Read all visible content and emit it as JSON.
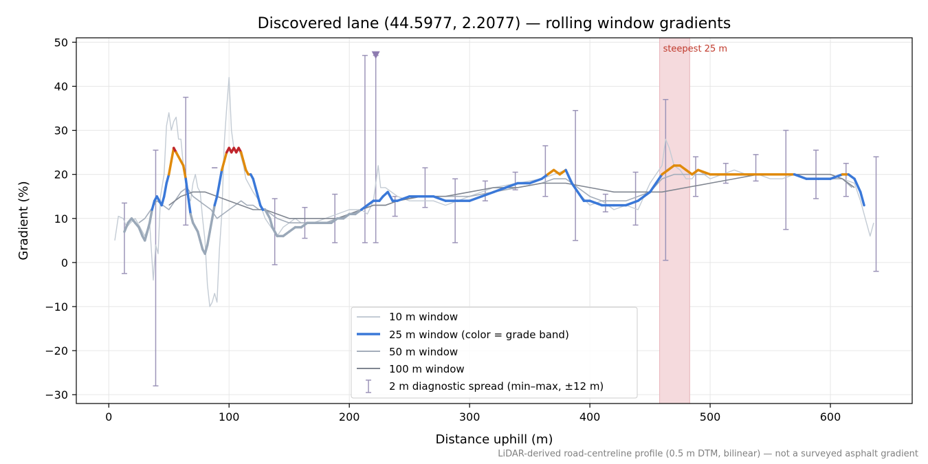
{
  "chart_data": {
    "type": "line",
    "title": "Discovered lane (44.5977, 2.2077) — rolling window gradients",
    "xlabel": "Distance uphill (m)",
    "ylabel": "Gradient (%)",
    "xlim": [
      -27,
      668
    ],
    "ylim": [
      -32,
      51
    ],
    "xticks": [
      0,
      100,
      200,
      300,
      400,
      500,
      600
    ],
    "yticks": [
      -30,
      -20,
      -10,
      0,
      10,
      20,
      30,
      40,
      50
    ],
    "grid": true,
    "legend_position": "bottom-center",
    "footnote": "LiDAR-derived road-centreline profile (0.5 m DTM, bilinear) — not a surveyed asphalt gradient",
    "highlight": {
      "label": "steepest 25 m",
      "x_start": 458,
      "x_end": 483,
      "color": "#f5dadd"
    },
    "marker": {
      "x": 222,
      "y": 47,
      "color": "#8e7bb0"
    },
    "grade_band_colors": {
      "moderate": "#3a78d8",
      "steep": "#e08a0b",
      "very_steep": "#c0262d",
      "low": "#9aa8b8"
    },
    "series": [
      {
        "name": "10 m window",
        "color": "#c3cbd4",
        "x": [
          5,
          8,
          12,
          15,
          18,
          22,
          26,
          30,
          34,
          37,
          39,
          41,
          43,
          46,
          48,
          50,
          52,
          54,
          56,
          58,
          60,
          62,
          64,
          66,
          68,
          70,
          72,
          74,
          76,
          78,
          80,
          82,
          84,
          86,
          88,
          90,
          92,
          94,
          96,
          98,
          100,
          102,
          104,
          106,
          108,
          110,
          112,
          114,
          116,
          118,
          120,
          125,
          130,
          135,
          140,
          145,
          150,
          155,
          160,
          170,
          180,
          190,
          200,
          210,
          215,
          220,
          224,
          226,
          230,
          240,
          250,
          260,
          270,
          280,
          290,
          300,
          320,
          340,
          360,
          370,
          380,
          390,
          400,
          410,
          420,
          430,
          440,
          450,
          455,
          460,
          463,
          466,
          470,
          475,
          480,
          485,
          490,
          500,
          510,
          520,
          530,
          540,
          550,
          560,
          570,
          580,
          590,
          600,
          610,
          620,
          625,
          630,
          633,
          636
        ],
        "y": [
          5,
          10.5,
          10,
          8,
          9,
          10,
          8,
          6,
          9,
          -4,
          4,
          2,
          15,
          20,
          31,
          34,
          30,
          32,
          33,
          28,
          28,
          22,
          18,
          15,
          14,
          18,
          20,
          17,
          16,
          10,
          5,
          -5,
          -10,
          -9,
          -7,
          -9,
          3,
          11,
          27,
          35,
          42,
          30,
          26,
          25,
          26,
          24,
          22,
          19,
          18,
          17,
          16,
          14,
          10,
          8,
          6,
          8,
          9,
          10,
          9,
          9,
          10,
          11,
          12,
          12,
          11,
          14,
          22,
          17,
          17,
          15,
          14,
          14,
          14,
          13,
          14,
          15,
          17,
          18,
          19,
          20,
          21,
          16,
          13,
          14,
          12,
          13,
          12,
          18,
          20,
          22,
          28,
          26,
          22,
          21,
          19,
          19,
          21,
          19,
          20,
          21,
          20,
          20,
          19,
          19,
          20,
          19,
          19,
          19,
          19,
          18,
          14,
          9,
          6,
          9
        ]
      },
      {
        "name": "25 m window (color = grade band)",
        "color": "#3a78d8",
        "x": [
          13,
          16,
          19,
          22,
          25,
          28,
          30,
          32,
          34,
          36,
          38,
          40,
          42,
          44,
          46,
          48,
          50,
          52,
          54,
          56,
          58,
          60,
          62,
          64,
          66,
          68,
          70,
          72,
          74,
          76,
          78,
          80,
          82,
          84,
          86,
          88,
          90,
          92,
          94,
          96,
          98,
          100,
          102,
          104,
          106,
          108,
          110,
          112,
          114,
          116,
          118,
          120,
          122,
          124,
          126,
          128,
          130,
          132,
          134,
          136,
          138,
          140,
          145,
          150,
          155,
          160,
          165,
          170,
          175,
          180,
          185,
          190,
          195,
          200,
          205,
          210,
          215,
          220,
          225,
          228,
          232,
          236,
          240,
          250,
          260,
          270,
          280,
          290,
          300,
          310,
          320,
          330,
          340,
          350,
          360,
          365,
          370,
          375,
          380,
          385,
          390,
          395,
          400,
          410,
          420,
          430,
          440,
          445,
          450,
          455,
          460,
          465,
          470,
          475,
          480,
          485,
          490,
          500,
          510,
          520,
          530,
          540,
          550,
          560,
          570,
          580,
          590,
          600,
          610,
          615,
          620,
          625,
          628
        ],
        "y": [
          7,
          9,
          10,
          9,
          8,
          6,
          5,
          7,
          9,
          12,
          14,
          15,
          14,
          13,
          15,
          18,
          20,
          23,
          26,
          25,
          24,
          23,
          22,
          19,
          15,
          11,
          9,
          8,
          7,
          5,
          3,
          2,
          4,
          7,
          10,
          13,
          15,
          18,
          21,
          23,
          25,
          26,
          25,
          26,
          25,
          26,
          25,
          23,
          21,
          20,
          20,
          19,
          17,
          15,
          13,
          12,
          12,
          11,
          10,
          8,
          7,
          6,
          6,
          7,
          8,
          8,
          9,
          9,
          9,
          9,
          9,
          10,
          10,
          11,
          11,
          12,
          13,
          14,
          14,
          15,
          16,
          14,
          14,
          15,
          15,
          15,
          14,
          14,
          14,
          15,
          16,
          17,
          18,
          18,
          19,
          20,
          21,
          20,
          21,
          18,
          16,
          14,
          14,
          13,
          13,
          13,
          14,
          15,
          16,
          18,
          20,
          21,
          22,
          22,
          21,
          20,
          21,
          20,
          20,
          20,
          20,
          20,
          20,
          20,
          20,
          19,
          19,
          19,
          20,
          20,
          19,
          16,
          13
        ]
      },
      {
        "name": "50 m window",
        "color": "#a4adba",
        "x": [
          25,
          30,
          35,
          40,
          45,
          50,
          55,
          60,
          65,
          70,
          75,
          80,
          85,
          90,
          95,
          100,
          105,
          110,
          115,
          120,
          125,
          130,
          135,
          140,
          150,
          160,
          170,
          180,
          190,
          200,
          210,
          220,
          230,
          240,
          260,
          280,
          300,
          320,
          340,
          360,
          370,
          380,
          390,
          400,
          410,
          420,
          430,
          440,
          450,
          460,
          470,
          480,
          490,
          500,
          510,
          520,
          530,
          540,
          550,
          560,
          570,
          580,
          590,
          600,
          610,
          618
        ],
        "y": [
          9,
          10,
          12,
          14,
          13,
          12,
          14,
          16,
          17,
          15,
          14,
          13,
          12,
          10,
          11,
          12,
          13,
          14,
          13,
          13,
          12,
          12,
          11,
          10,
          9,
          9,
          9,
          9,
          10,
          11,
          12,
          13,
          13,
          14,
          15,
          15,
          15,
          16,
          17,
          18,
          19,
          19,
          17,
          15,
          14,
          14,
          14,
          15,
          16,
          19,
          20,
          20,
          20,
          20,
          20,
          20,
          20,
          20,
          20,
          20,
          20,
          19,
          19,
          19,
          19,
          17
        ]
      },
      {
        "name": "100 m window",
        "color": "#7f8590",
        "x": [
          50,
          60,
          70,
          80,
          90,
          100,
          110,
          120,
          130,
          140,
          150,
          160,
          170,
          180,
          190,
          200,
          210,
          220,
          230,
          240,
          260,
          280,
          300,
          320,
          340,
          360,
          380,
          400,
          420,
          440,
          460,
          480,
          500,
          520,
          540,
          560,
          580,
          600,
          610,
          620
        ],
        "y": [
          13,
          15,
          16,
          16,
          15,
          14,
          13,
          12,
          12,
          11,
          10,
          10,
          10,
          10,
          10,
          11,
          12,
          13,
          13,
          14,
          15,
          15,
          16,
          17,
          17,
          18,
          18,
          17,
          16,
          16,
          16,
          17,
          18,
          19,
          20,
          20,
          20,
          20,
          19,
          17
        ]
      }
    ],
    "diagnostic_spread": {
      "name": "2 m diagnostic spread (min–max, ±12 m)",
      "color": "#9c94b8",
      "x": [
        13,
        39,
        64,
        88,
        138,
        163,
        188,
        213,
        222,
        238,
        263,
        288,
        313,
        338,
        363,
        388,
        413,
        438,
        463,
        488,
        513,
        538,
        563,
        588,
        613,
        638
      ],
      "y_min": [
        -2.5,
        -28,
        8.5,
        21.5,
        -0.5,
        5.5,
        4.5,
        4.5,
        4.5,
        10.5,
        12.5,
        4.5,
        14,
        16.5,
        15,
        5,
        11.5,
        8.5,
        0.5,
        15,
        18,
        18.5,
        7.5,
        14.5,
        15,
        -2
      ],
      "y_max": [
        13.5,
        25.5,
        37.5,
        21.5,
        14.5,
        12.5,
        15.5,
        47,
        47,
        15,
        21.5,
        19,
        18.5,
        20.5,
        26.5,
        34.5,
        15.5,
        20.5,
        37,
        24,
        22.5,
        24.5,
        30,
        25.5,
        22.5,
        24
      ]
    }
  }
}
